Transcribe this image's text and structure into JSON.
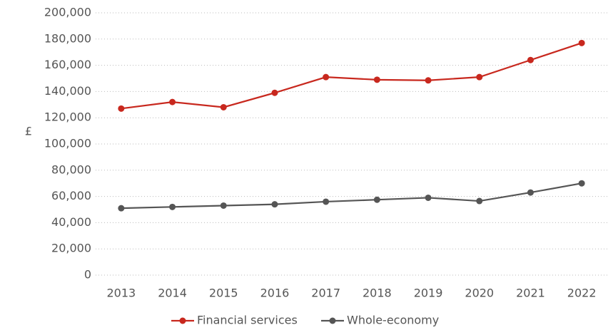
{
  "chart_data": {
    "type": "line",
    "ylabel": "£",
    "categories": [
      "2013",
      "2014",
      "2015",
      "2016",
      "2017",
      "2018",
      "2019",
      "2020",
      "2021",
      "2022"
    ],
    "series": [
      {
        "name": "Financial services",
        "color": "#c8281e",
        "values": [
          127000,
          132000,
          128000,
          139000,
          151000,
          149000,
          148500,
          151000,
          164000,
          177000
        ]
      },
      {
        "name": "Whole-economy",
        "color": "#555555",
        "values": [
          51000,
          52000,
          53000,
          54000,
          56000,
          57500,
          59000,
          56500,
          63000,
          70000
        ]
      }
    ],
    "ylim": [
      0,
      200000
    ],
    "yticks": [
      0,
      {
        "value": 20000,
        "label": "20,000"
      },
      {
        "value": 40000,
        "label": "40,000"
      },
      {
        "value": 60000,
        "label": "60,000"
      },
      {
        "value": 80000,
        "label": "80,000"
      },
      {
        "value": 100000,
        "label": "100,000"
      },
      {
        "value": 120000,
        "label": "120,000"
      },
      {
        "value": 140000,
        "label": "140,000"
      },
      {
        "value": 160000,
        "label": "160,000"
      },
      {
        "value": 180000,
        "label": "180,000"
      },
      {
        "value": 200000,
        "label": "200,000"
      }
    ],
    "grid": true,
    "legend": "bottom"
  }
}
